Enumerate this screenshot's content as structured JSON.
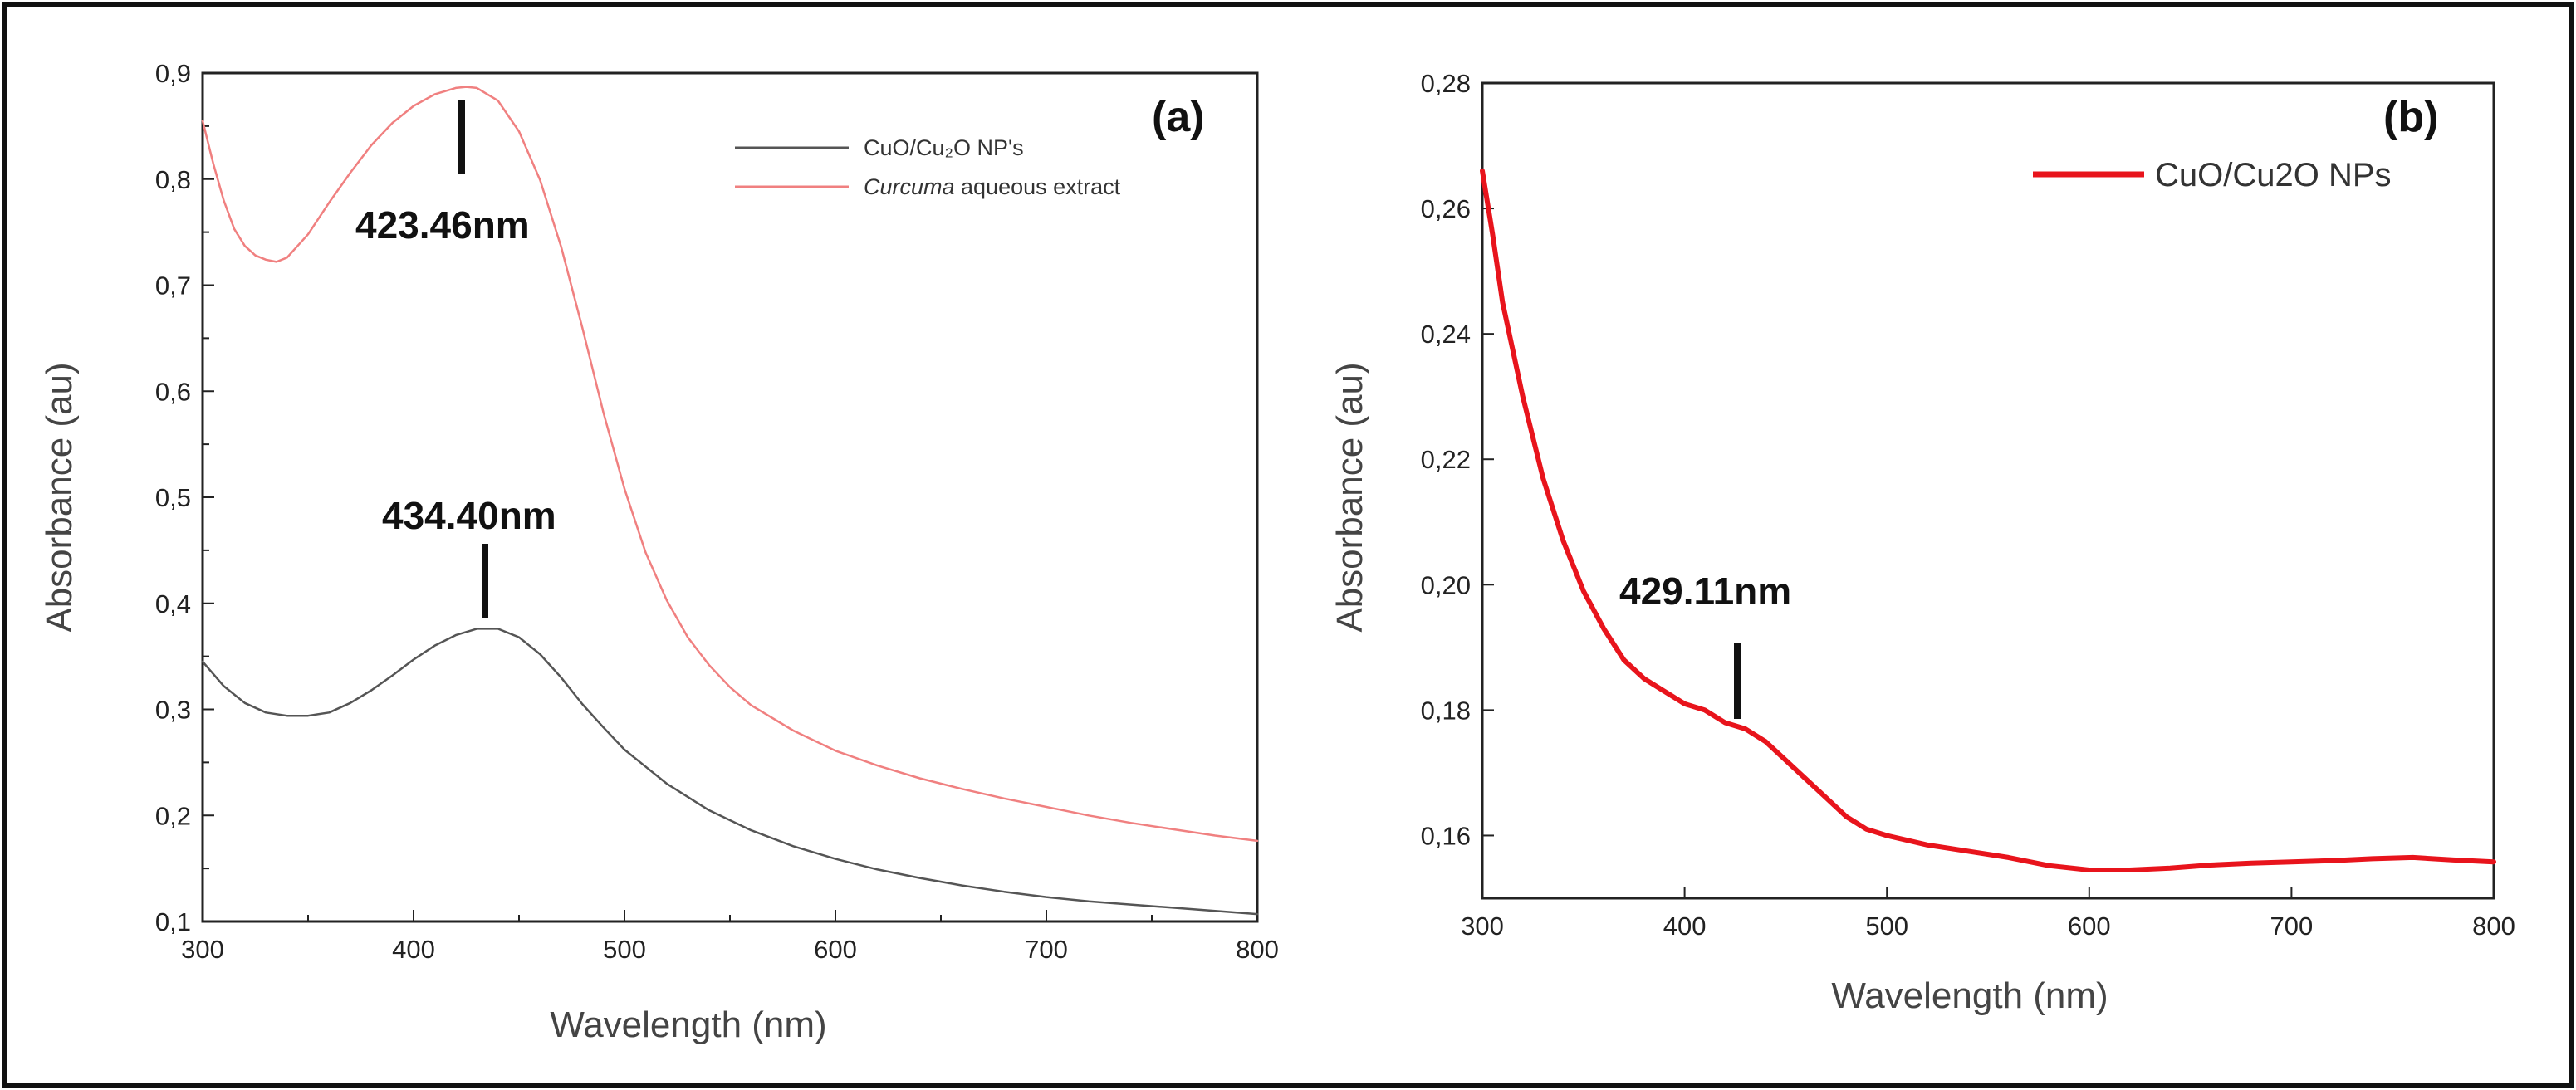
{
  "chart_data": [
    {
      "type": "line",
      "panel_label": "(a)",
      "xlabel": "Wavelength (nm)",
      "ylabel": "Absorbance (au)",
      "xlim": [
        300,
        800
      ],
      "ylim": [
        0.1,
        0.9
      ],
      "x_ticks": [
        300,
        400,
        500,
        600,
        700,
        800
      ],
      "y_ticks": [
        0.1,
        0.2,
        0.3,
        0.4,
        0.5,
        0.6,
        0.7,
        0.8,
        0.9
      ],
      "y_tick_labels": [
        "0,1",
        "0,2",
        "0,3",
        "0,4",
        "0,5",
        "0,6",
        "0,7",
        "0,8",
        "0,9"
      ],
      "legend_position": "top-right",
      "series": [
        {
          "name": "CuO/Cu₂O NP's",
          "color": "#555555",
          "points": [
            [
              300,
              0.345
            ],
            [
              310,
              0.322
            ],
            [
              320,
              0.306
            ],
            [
              330,
              0.297
            ],
            [
              340,
              0.294
            ],
            [
              350,
              0.294
            ],
            [
              360,
              0.297
            ],
            [
              370,
              0.306
            ],
            [
              380,
              0.318
            ],
            [
              390,
              0.332
            ],
            [
              400,
              0.347
            ],
            [
              410,
              0.36
            ],
            [
              420,
              0.37
            ],
            [
              430,
              0.376
            ],
            [
              440,
              0.376
            ],
            [
              450,
              0.368
            ],
            [
              460,
              0.352
            ],
            [
              470,
              0.33
            ],
            [
              480,
              0.305
            ],
            [
              490,
              0.283
            ],
            [
              500,
              0.262
            ],
            [
              520,
              0.23
            ],
            [
              540,
              0.205
            ],
            [
              560,
              0.186
            ],
            [
              580,
              0.171
            ],
            [
              600,
              0.159
            ],
            [
              620,
              0.149
            ],
            [
              640,
              0.141
            ],
            [
              660,
              0.134
            ],
            [
              680,
              0.128
            ],
            [
              700,
              0.123
            ],
            [
              720,
              0.119
            ],
            [
              740,
              0.116
            ],
            [
              760,
              0.113
            ],
            [
              780,
              0.11
            ],
            [
              800,
              0.107
            ]
          ]
        },
        {
          "name": "Curcuma aqueous extract",
          "legend_prefix_italic": "Curcuma",
          "legend_suffix": " aqueous extract",
          "color": "#f08080",
          "points": [
            [
              300,
              0.855
            ],
            [
              305,
              0.815
            ],
            [
              310,
              0.78
            ],
            [
              315,
              0.753
            ],
            [
              320,
              0.737
            ],
            [
              325,
              0.728
            ],
            [
              330,
              0.724
            ],
            [
              335,
              0.722
            ],
            [
              340,
              0.726
            ],
            [
              350,
              0.748
            ],
            [
              360,
              0.778
            ],
            [
              370,
              0.806
            ],
            [
              380,
              0.832
            ],
            [
              390,
              0.853
            ],
            [
              400,
              0.869
            ],
            [
              410,
              0.88
            ],
            [
              420,
              0.886
            ],
            [
              425,
              0.887
            ],
            [
              430,
              0.886
            ],
            [
              440,
              0.874
            ],
            [
              450,
              0.845
            ],
            [
              460,
              0.799
            ],
            [
              470,
              0.736
            ],
            [
              480,
              0.66
            ],
            [
              490,
              0.58
            ],
            [
              500,
              0.508
            ],
            [
              510,
              0.448
            ],
            [
              520,
              0.403
            ],
            [
              530,
              0.368
            ],
            [
              540,
              0.342
            ],
            [
              550,
              0.321
            ],
            [
              560,
              0.304
            ],
            [
              580,
              0.28
            ],
            [
              600,
              0.261
            ],
            [
              620,
              0.247
            ],
            [
              640,
              0.235
            ],
            [
              660,
              0.225
            ],
            [
              680,
              0.216
            ],
            [
              700,
              0.208
            ],
            [
              720,
              0.2
            ],
            [
              740,
              0.193
            ],
            [
              760,
              0.187
            ],
            [
              780,
              0.181
            ],
            [
              800,
              0.176
            ]
          ]
        }
      ],
      "annotations": [
        {
          "text": "423.46nm",
          "wavelength": 423.46
        },
        {
          "text": "434.40nm",
          "wavelength": 434.4
        }
      ]
    },
    {
      "type": "line",
      "panel_label": "(b)",
      "xlabel": "Wavelength (nm)",
      "ylabel": "Absorbance (au)",
      "xlim": [
        300,
        800
      ],
      "ylim": [
        0.15,
        0.28
      ],
      "x_ticks": [
        300,
        400,
        500,
        600,
        700,
        800
      ],
      "y_ticks": [
        0.16,
        0.18,
        0.2,
        0.22,
        0.24,
        0.26,
        0.28
      ],
      "y_tick_labels": [
        "0,16",
        "0,18",
        "0,20",
        "0,22",
        "0,24",
        "0,26",
        "0,28"
      ],
      "legend_position": "top-right",
      "series": [
        {
          "name": "CuO/Cu2O NPs",
          "color": "#e8141c",
          "points": [
            [
              300,
              0.266
            ],
            [
              305,
              0.256
            ],
            [
              310,
              0.245
            ],
            [
              320,
              0.23
            ],
            [
              330,
              0.217
            ],
            [
              340,
              0.207
            ],
            [
              350,
              0.199
            ],
            [
              360,
              0.193
            ],
            [
              370,
              0.188
            ],
            [
              380,
              0.185
            ],
            [
              390,
              0.183
            ],
            [
              400,
              0.181
            ],
            [
              410,
              0.18
            ],
            [
              420,
              0.178
            ],
            [
              430,
              0.177
            ],
            [
              440,
              0.175
            ],
            [
              450,
              0.172
            ],
            [
              460,
              0.169
            ],
            [
              470,
              0.166
            ],
            [
              480,
              0.163
            ],
            [
              490,
              0.161
            ],
            [
              500,
              0.16
            ],
            [
              520,
              0.1585
            ],
            [
              540,
              0.1575
            ],
            [
              560,
              0.1565
            ],
            [
              580,
              0.1552
            ],
            [
              600,
              0.1545
            ],
            [
              620,
              0.1545
            ],
            [
              640,
              0.1548
            ],
            [
              660,
              0.1553
            ],
            [
              680,
              0.1556
            ],
            [
              700,
              0.1558
            ],
            [
              720,
              0.156
            ],
            [
              740,
              0.1563
            ],
            [
              760,
              0.1565
            ],
            [
              780,
              0.1561
            ],
            [
              800,
              0.1558
            ]
          ]
        }
      ],
      "annotations": [
        {
          "text": "429.11nm",
          "wavelength": 429.11
        }
      ]
    }
  ]
}
